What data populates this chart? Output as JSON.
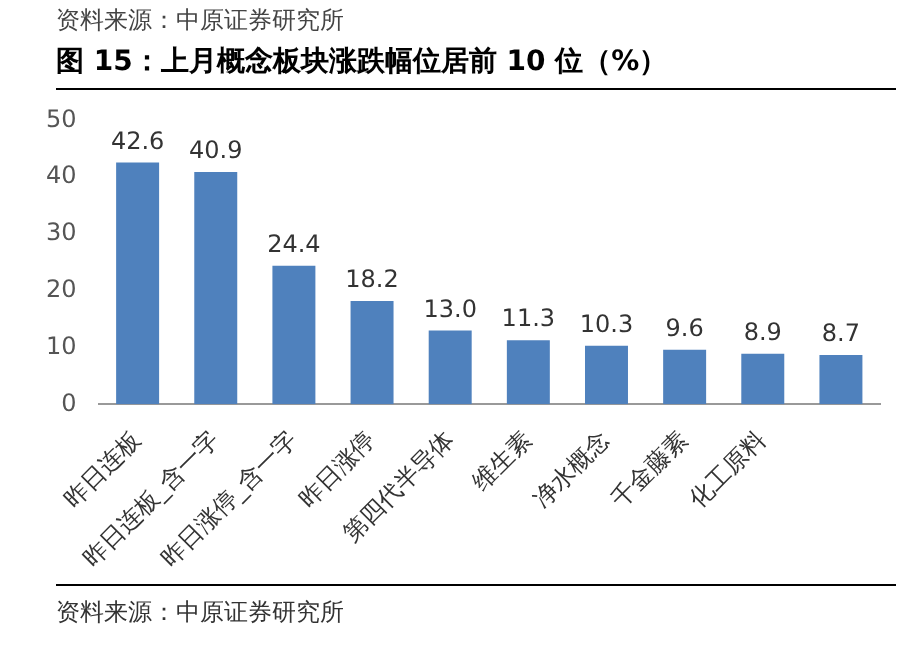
{
  "chart_data": {
    "type": "bar",
    "title": "图 15：上月概念板块涨跌幅位居前 10 位（%）",
    "annotations": [
      "资料来源：中原证券研究所",
      "资料来源：中原证券研究所"
    ],
    "categories": [
      "昨日连板",
      "昨日连板_含一字",
      "昨日涨停_含一字",
      "昨日涨停",
      "第四代半导体",
      "维生素",
      "净水概念",
      "千金藤素",
      "化工原料",
      null
    ],
    "values": [
      42.6,
      40.9,
      24.4,
      18.2,
      13.0,
      11.3,
      10.3,
      9.6,
      8.9,
      8.7
    ],
    "value_labels": [
      "42.6",
      "40.9",
      "24.4",
      "18.2",
      "13.0",
      "11.3",
      "10.3",
      "9.6",
      "8.9",
      "8.7"
    ],
    "color": "#4f81bd",
    "ylim": [
      0,
      50
    ],
    "yticks": [
      0,
      10,
      20,
      30,
      40,
      50
    ],
    "grid": false,
    "legend": false
  }
}
